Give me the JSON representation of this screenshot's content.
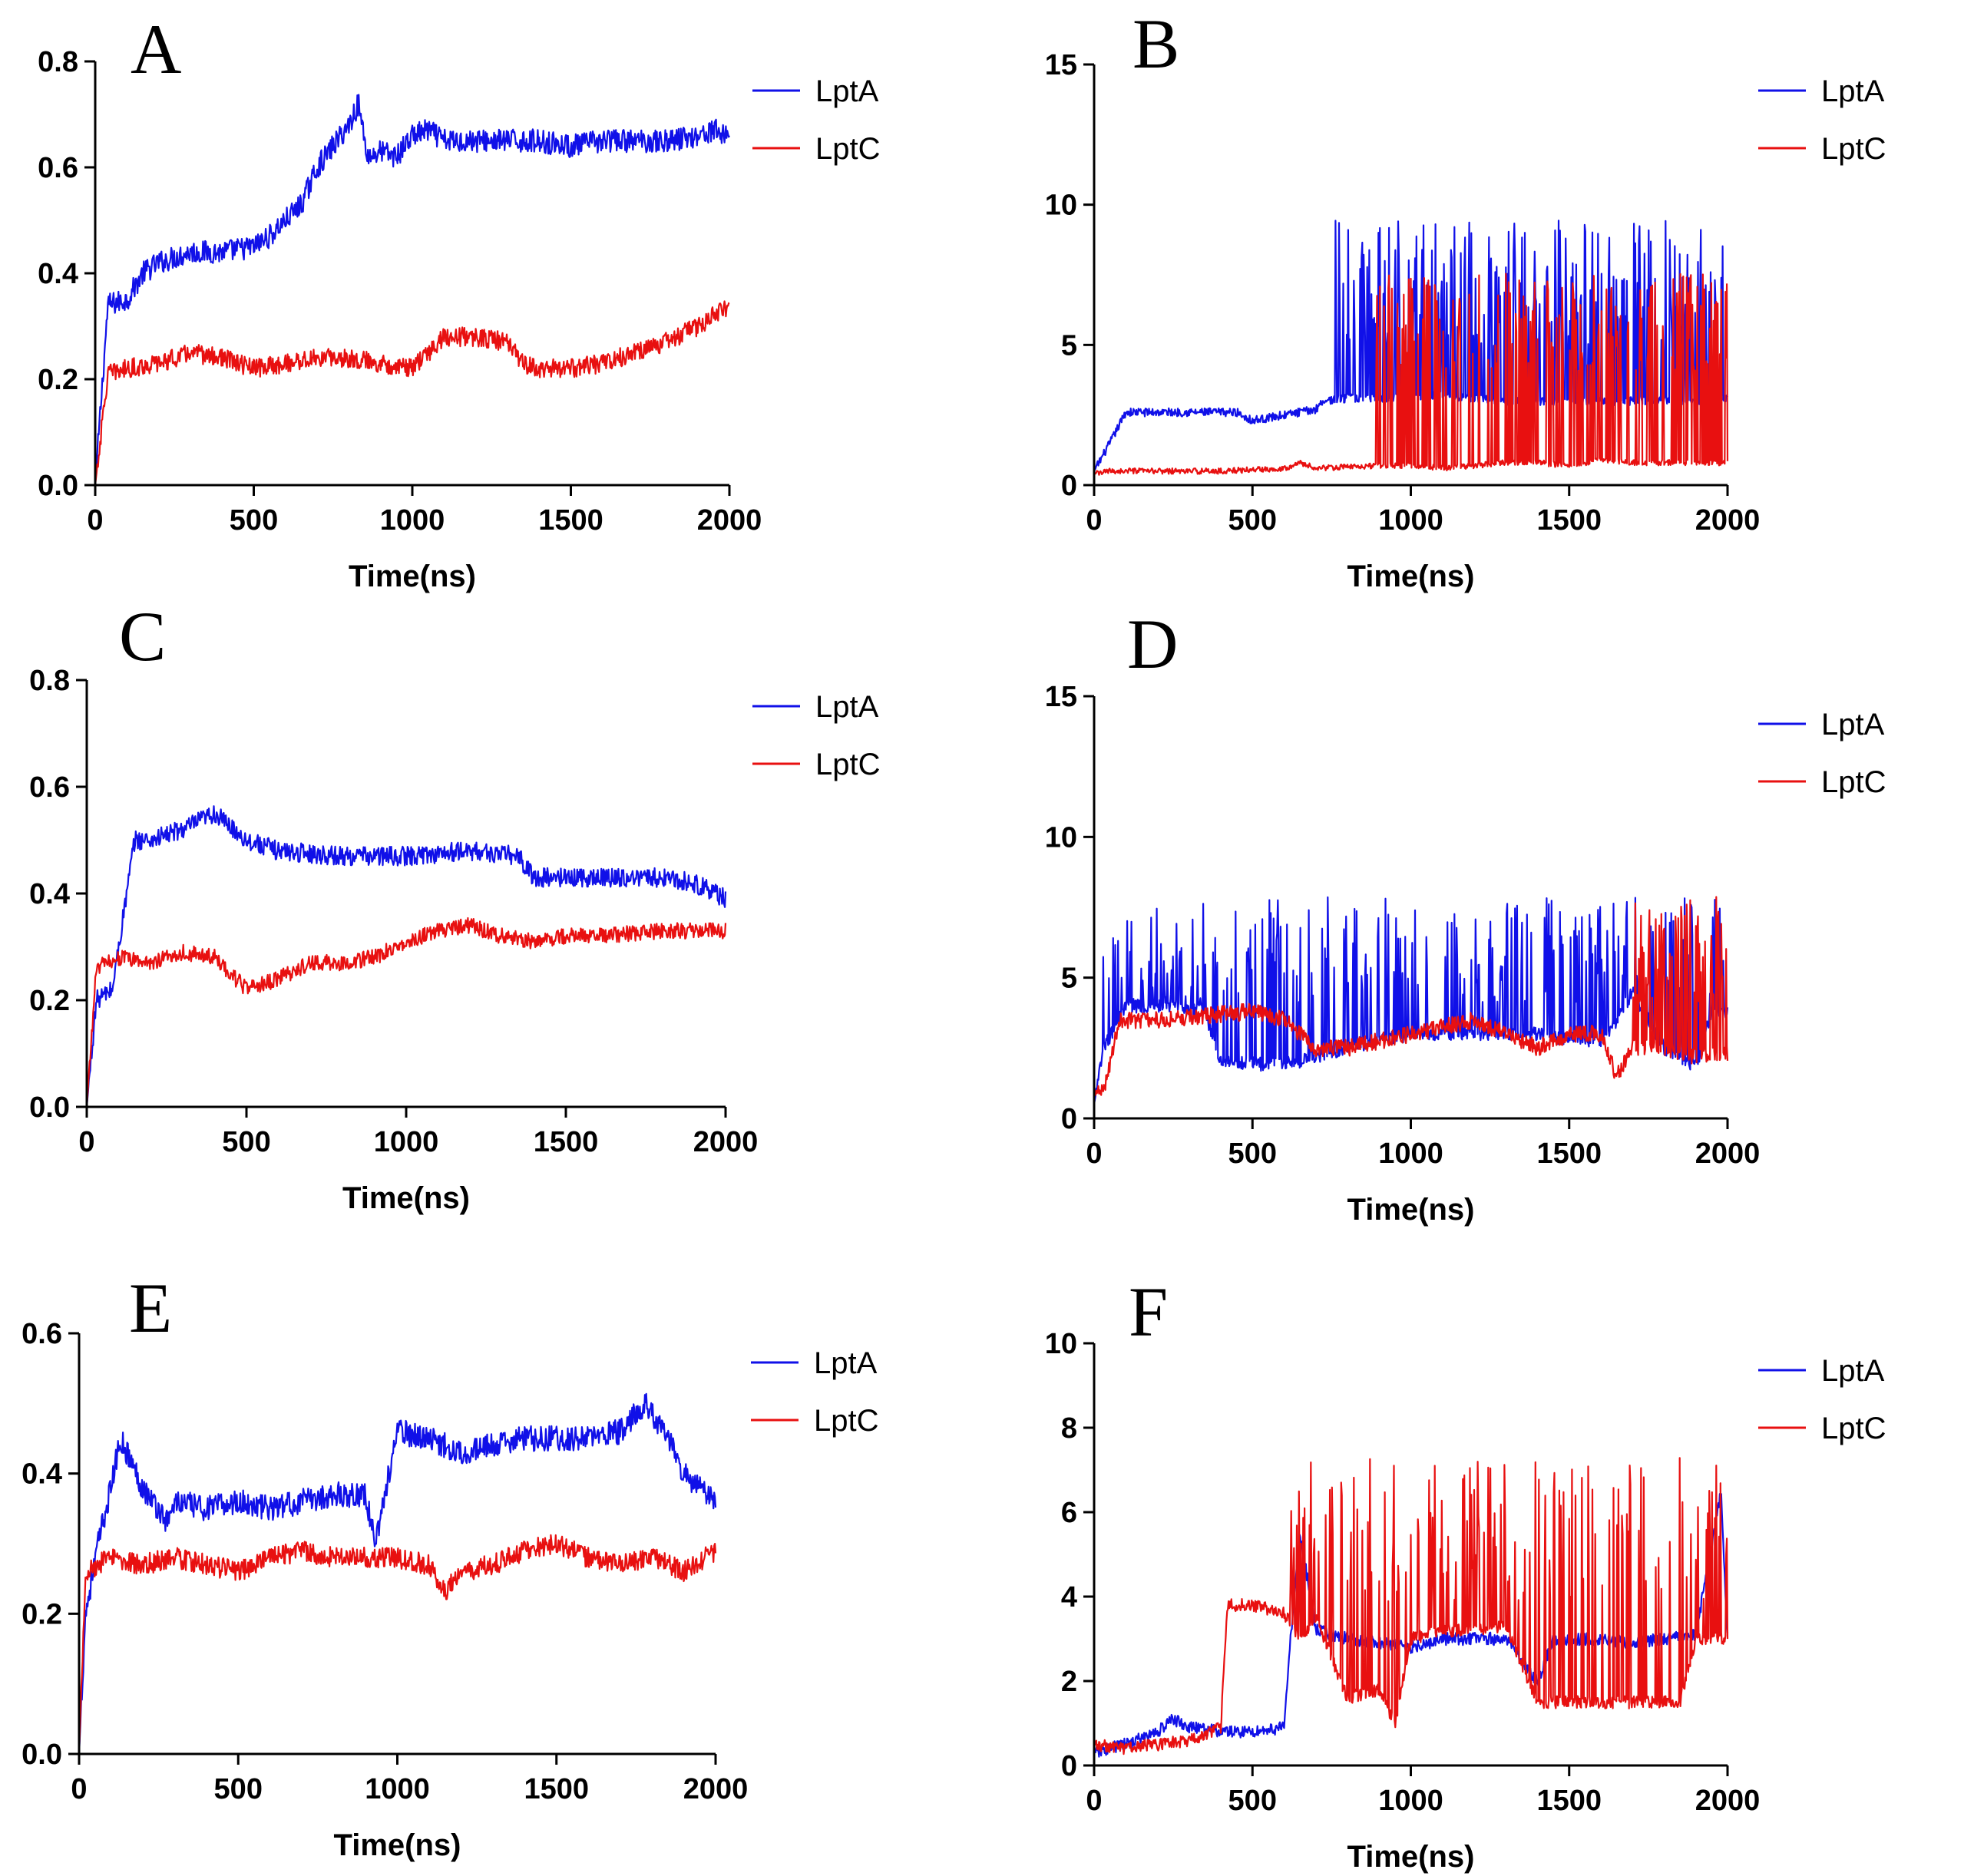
{
  "figure": {
    "panels": [
      "A",
      "B",
      "C",
      "D",
      "E",
      "F"
    ]
  },
  "chart_data": [
    {
      "id": "A",
      "type": "line",
      "panel_label": "A",
      "xlabel": "Time(ns)",
      "ylabel": "",
      "xlim": [
        0,
        2000
      ],
      "ylim": [
        0,
        0.8
      ],
      "xticks": [
        "0",
        "500",
        "1000",
        "1500",
        "2000"
      ],
      "yticks": [
        "0.0",
        "0.2",
        "0.4",
        "0.6",
        "0.8"
      ],
      "legend": [
        "LptA",
        "LptC"
      ],
      "series": [
        {
          "name": "LptA",
          "color": "#1010e8",
          "x": [
            0,
            40,
            100,
            150,
            200,
            300,
            400,
            500,
            550,
            600,
            650,
            700,
            750,
            800,
            830,
            860,
            900,
            950,
            1000,
            1050,
            1100,
            1200,
            1300,
            1400,
            1500,
            1600,
            1700,
            1800,
            1900,
            1950,
            2000
          ],
          "y": [
            0.0,
            0.34,
            0.35,
            0.4,
            0.42,
            0.44,
            0.44,
            0.45,
            0.47,
            0.5,
            0.53,
            0.6,
            0.64,
            0.68,
            0.72,
            0.62,
            0.63,
            0.62,
            0.66,
            0.67,
            0.65,
            0.65,
            0.65,
            0.65,
            0.64,
            0.65,
            0.65,
            0.65,
            0.66,
            0.67,
            0.66
          ],
          "noise": 0.022
        },
        {
          "name": "LptC",
          "color": "#e81010",
          "x": [
            0,
            40,
            100,
            200,
            300,
            400,
            500,
            600,
            700,
            800,
            900,
            1000,
            1050,
            1100,
            1200,
            1300,
            1350,
            1400,
            1500,
            1600,
            1700,
            1800,
            1900,
            2000
          ],
          "y": [
            0.0,
            0.21,
            0.22,
            0.23,
            0.25,
            0.24,
            0.22,
            0.23,
            0.24,
            0.24,
            0.23,
            0.22,
            0.25,
            0.28,
            0.28,
            0.27,
            0.23,
            0.22,
            0.22,
            0.23,
            0.25,
            0.27,
            0.3,
            0.34
          ],
          "noise": 0.018
        }
      ]
    },
    {
      "id": "B",
      "type": "line",
      "panel_label": "B",
      "xlabel": "Time(ns)",
      "ylabel": "",
      "xlim": [
        0,
        2000
      ],
      "ylim": [
        0,
        15
      ],
      "xticks": [
        "0",
        "500",
        "1000",
        "1500",
        "2000"
      ],
      "yticks": [
        "0",
        "5",
        "10",
        "15"
      ],
      "legend": [
        "LptA",
        "LptC"
      ],
      "series": [
        {
          "name": "LptA",
          "color": "#1010e8",
          "x": [
            0,
            50,
            100,
            450,
            500,
            700,
            720,
            800,
            850,
            900,
            1100,
            1200,
            1300,
            1400,
            1500,
            1600,
            1700,
            1800,
            1900,
            2000
          ],
          "y": [
            0.5,
            1.5,
            2.6,
            2.6,
            2.3,
            2.7,
            3.0,
            3.1,
            3.1,
            3.1,
            3.2,
            3.1,
            3.0,
            3.0,
            3.0,
            3.0,
            3.0,
            3.0,
            3.0,
            3.1
          ],
          "noise": 0.15,
          "spike_start": 760,
          "spike_high": 9,
          "spike_prob": 0.35
        },
        {
          "name": "LptC",
          "color": "#e81010",
          "x": [
            0,
            50,
            200,
            400,
            600,
            650,
            700,
            900,
            1000,
            1100,
            1200,
            1300,
            1400,
            1500,
            1600,
            1700,
            1800,
            1900,
            2000
          ],
          "y": [
            0.4,
            0.5,
            0.5,
            0.5,
            0.6,
            0.8,
            0.6,
            0.7,
            0.7,
            0.6,
            0.7,
            0.8,
            0.8,
            0.7,
            0.9,
            0.8,
            0.8,
            0.8,
            0.8
          ],
          "noise": 0.1,
          "spike_start": 880,
          "spike_high": 7.2,
          "spike_prob": 0.3
        }
      ]
    },
    {
      "id": "C",
      "type": "line",
      "panel_label": "C",
      "xlabel": "Time(ns)",
      "ylabel": "",
      "xlim": [
        0,
        2000
      ],
      "ylim": [
        0,
        0.8
      ],
      "xticks": [
        "0",
        "500",
        "1000",
        "1500",
        "2000"
      ],
      "yticks": [
        "0.0",
        "0.2",
        "0.4",
        "0.6",
        "0.8"
      ],
      "legend": [
        "LptA",
        "LptC"
      ],
      "series": [
        {
          "name": "LptA",
          "color": "#1010e8",
          "x": [
            0,
            30,
            80,
            120,
            150,
            200,
            300,
            400,
            500,
            600,
            800,
            1000,
            1200,
            1350,
            1400,
            1600,
            1800,
            1900,
            2000
          ],
          "y": [
            0.0,
            0.2,
            0.22,
            0.38,
            0.5,
            0.5,
            0.52,
            0.55,
            0.5,
            0.48,
            0.47,
            0.47,
            0.48,
            0.47,
            0.43,
            0.43,
            0.43,
            0.42,
            0.39
          ],
          "noise": 0.018
        },
        {
          "name": "LptC",
          "color": "#e81010",
          "x": [
            0,
            30,
            100,
            200,
            300,
            400,
            500,
            600,
            700,
            800,
            900,
            1000,
            1100,
            1200,
            1300,
            1400,
            1500,
            1600,
            1800,
            2000
          ],
          "y": [
            0.0,
            0.26,
            0.28,
            0.27,
            0.29,
            0.28,
            0.22,
            0.24,
            0.27,
            0.27,
            0.28,
            0.31,
            0.33,
            0.34,
            0.32,
            0.31,
            0.32,
            0.32,
            0.33,
            0.33
          ],
          "noise": 0.015
        }
      ]
    },
    {
      "id": "D",
      "type": "line",
      "panel_label": "D",
      "xlabel": "Time(ns)",
      "ylabel": "",
      "xlim": [
        0,
        2000
      ],
      "ylim": [
        0,
        15
      ],
      "xticks": [
        "0",
        "500",
        "1000",
        "1500",
        "2000"
      ],
      "yticks": [
        "0",
        "5",
        "10",
        "15"
      ],
      "legend": [
        "LptA",
        "LptC"
      ],
      "series": [
        {
          "name": "LptA",
          "color": "#1010e8",
          "x": [
            0,
            30,
            100,
            200,
            350,
            400,
            600,
            700,
            800,
            1000,
            1200,
            1400,
            1500,
            1600,
            1650,
            1700,
            1800,
            1900,
            1950,
            2000
          ],
          "y": [
            0.5,
            2.5,
            4.0,
            4.0,
            3.8,
            2.0,
            1.9,
            2.2,
            2.5,
            3.0,
            3.0,
            3.0,
            2.8,
            2.8,
            3.5,
            4.5,
            2.5,
            1.8,
            3.8,
            3.8
          ],
          "noise": 0.25,
          "spike_start": 20,
          "spike_high": 7.5,
          "spike_prob": 0.25
        },
        {
          "name": "LptC",
          "color": "#e81010",
          "x": [
            0,
            30,
            80,
            200,
            400,
            500,
            600,
            700,
            800,
            1000,
            1200,
            1400,
            1500,
            1600,
            1650,
            1700,
            1800,
            1900,
            2000
          ],
          "y": [
            0.8,
            1.0,
            3.5,
            3.5,
            3.7,
            3.8,
            3.5,
            2.5,
            2.5,
            3.0,
            3.5,
            2.5,
            3.0,
            3.0,
            1.5,
            2.5,
            2.5,
            2.2,
            2.3
          ],
          "noise": 0.3,
          "spike_start": 1700,
          "spike_high": 7.5,
          "spike_prob": 0.35
        }
      ]
    },
    {
      "id": "E",
      "type": "line",
      "panel_label": "E",
      "xlabel": "Time(ns)",
      "ylabel": "",
      "xlim": [
        0,
        2000
      ],
      "ylim": [
        0,
        0.6
      ],
      "xticks": [
        "0",
        "500",
        "1000",
        "1500",
        "2000"
      ],
      "yticks": [
        "0.0",
        "0.2",
        "0.4",
        "0.6"
      ],
      "legend": [
        "LptA",
        "LptC"
      ],
      "series": [
        {
          "name": "LptA",
          "color": "#1010e8",
          "x": [
            0,
            20,
            60,
            100,
            130,
            200,
            280,
            300,
            400,
            500,
            600,
            700,
            800,
            900,
            930,
            1000,
            1100,
            1200,
            1400,
            1600,
            1700,
            1780,
            1850,
            1900,
            2000
          ],
          "y": [
            0.0,
            0.2,
            0.3,
            0.38,
            0.45,
            0.38,
            0.33,
            0.36,
            0.35,
            0.36,
            0.35,
            0.36,
            0.37,
            0.37,
            0.3,
            0.46,
            0.45,
            0.43,
            0.45,
            0.45,
            0.46,
            0.5,
            0.45,
            0.4,
            0.36
          ],
          "noise": 0.018
        },
        {
          "name": "LptC",
          "color": "#e81010",
          "x": [
            0,
            20,
            100,
            200,
            300,
            400,
            500,
            600,
            700,
            800,
            900,
            1000,
            1100,
            1150,
            1200,
            1300,
            1400,
            1500,
            1600,
            1700,
            1800,
            1900,
            2000
          ],
          "y": [
            0.0,
            0.26,
            0.28,
            0.27,
            0.28,
            0.27,
            0.26,
            0.28,
            0.29,
            0.28,
            0.28,
            0.28,
            0.27,
            0.23,
            0.26,
            0.27,
            0.29,
            0.3,
            0.28,
            0.27,
            0.28,
            0.26,
            0.29
          ],
          "noise": 0.015
        }
      ]
    },
    {
      "id": "F",
      "type": "line",
      "panel_label": "F",
      "xlabel": "Time(ns)",
      "ylabel": "",
      "xlim": [
        0,
        2000
      ],
      "ylim": [
        0,
        10
      ],
      "xticks": [
        "0",
        "500",
        "1000",
        "1500",
        "2000"
      ],
      "yticks": [
        "0",
        "2",
        "4",
        "6",
        "8",
        "10"
      ],
      "legend": [
        "LptA",
        "LptC"
      ],
      "series": [
        {
          "name": "LptA",
          "color": "#1010e8",
          "x": [
            0,
            100,
            200,
            250,
            300,
            400,
            500,
            600,
            620,
            650,
            700,
            800,
            900,
            1000,
            1100,
            1200,
            1300,
            1350,
            1400,
            1450,
            1500,
            1600,
            1700,
            1800,
            1900,
            1980,
            2000
          ],
          "y": [
            0.3,
            0.5,
            0.8,
            1.1,
            0.9,
            0.8,
            0.8,
            0.9,
            3.0,
            5.5,
            3.2,
            3.0,
            2.9,
            2.8,
            3.0,
            3.0,
            3.0,
            2.5,
            2.0,
            3.0,
            3.0,
            3.0,
            2.9,
            3.0,
            3.1,
            6.5,
            3.0
          ],
          "noise": 0.15
        },
        {
          "name": "LptC",
          "color": "#e81010",
          "x": [
            0,
            100,
            200,
            300,
            400,
            420,
            500,
            600,
            650,
            700,
            800,
            900,
            950,
            1000,
            1100,
            1200,
            1300,
            1400,
            1500,
            1600,
            1700,
            1800,
            1850,
            1900,
            2000
          ],
          "y": [
            0.5,
            0.4,
            0.5,
            0.6,
            0.9,
            3.8,
            3.8,
            3.6,
            3.0,
            3.5,
            1.6,
            1.8,
            1.0,
            3.0,
            3.2,
            3.2,
            3.3,
            1.5,
            1.5,
            1.5,
            1.5,
            1.5,
            1.5,
            3.0,
            3.0
          ],
          "noise": 0.15,
          "spike_start": 620,
          "spike_high": 7.0,
          "spike_prob": 0.25
        }
      ]
    }
  ]
}
